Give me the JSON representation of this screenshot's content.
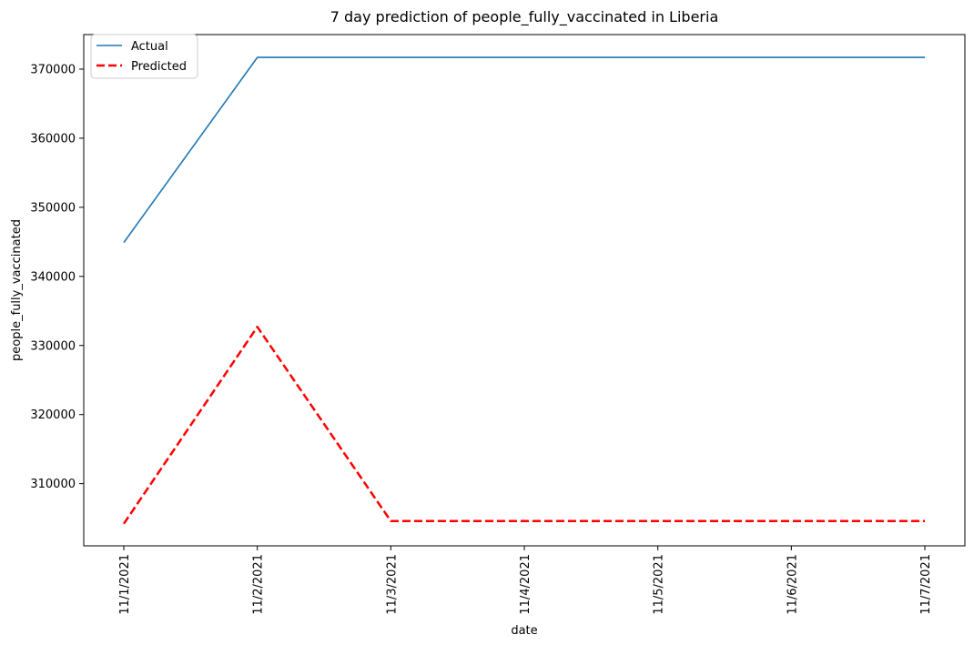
{
  "chart_data": {
    "type": "line",
    "title": "7 day prediction of people_fully_vaccinated in Liberia",
    "xlabel": "date",
    "ylabel": "people_fully_vaccinated",
    "x": [
      "11/1/2021",
      "11/2/2021",
      "11/3/2021",
      "11/4/2021",
      "11/5/2021",
      "11/6/2021",
      "11/7/2021"
    ],
    "yticks": [
      310000,
      320000,
      330000,
      340000,
      350000,
      360000,
      370000
    ],
    "ylim": [
      301000,
      375000
    ],
    "grid": false,
    "legend_position": "top-left",
    "series": [
      {
        "name": "Actual",
        "values": [
          344900,
          371700,
          371700,
          371700,
          371700,
          371700,
          371700
        ],
        "color": "#1f77b4",
        "style": "solid"
      },
      {
        "name": "Predicted",
        "values": [
          304200,
          332700,
          304600,
          304600,
          304600,
          304600,
          304600
        ],
        "color": "#ff0000",
        "style": "dashed"
      }
    ]
  }
}
